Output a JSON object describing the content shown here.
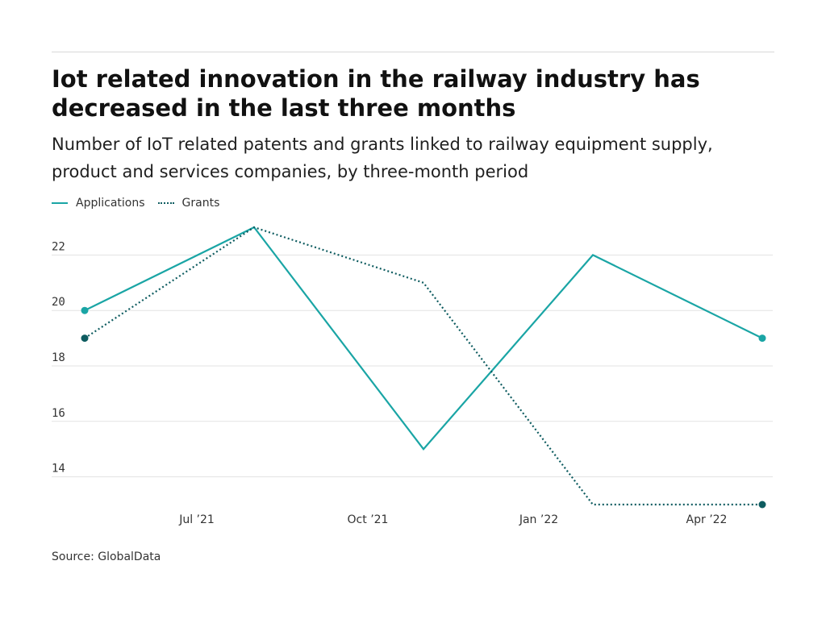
{
  "title": "Iot related innovation in the railway industry has decreased in the last three months",
  "subtitle": "Number of IoT related patents and grants linked to railway equipment supply, product and services companies, by three-month period",
  "source": "Source: GlobalData",
  "colors": {
    "applications": "#1aa5a5",
    "grants": "#0e5c60",
    "grid": "#e3e3e3",
    "text": "#333333"
  },
  "chart_data": {
    "type": "line",
    "x_tick_labels": [
      "Jul ’21",
      "Oct ’21",
      "Jan ’22",
      "Apr ’22"
    ],
    "y_ticks": [
      14,
      16,
      18,
      20,
      22
    ],
    "ylim": [
      13,
      23
    ],
    "series": [
      {
        "name": "Applications",
        "style": "solid",
        "values": [
          20,
          23,
          15,
          22,
          19
        ],
        "end_markers": true
      },
      {
        "name": "Grants",
        "style": "dotted",
        "values": [
          19,
          23,
          21,
          13,
          13
        ],
        "end_markers": true
      }
    ],
    "legend_position": "top-left",
    "grid": true
  }
}
